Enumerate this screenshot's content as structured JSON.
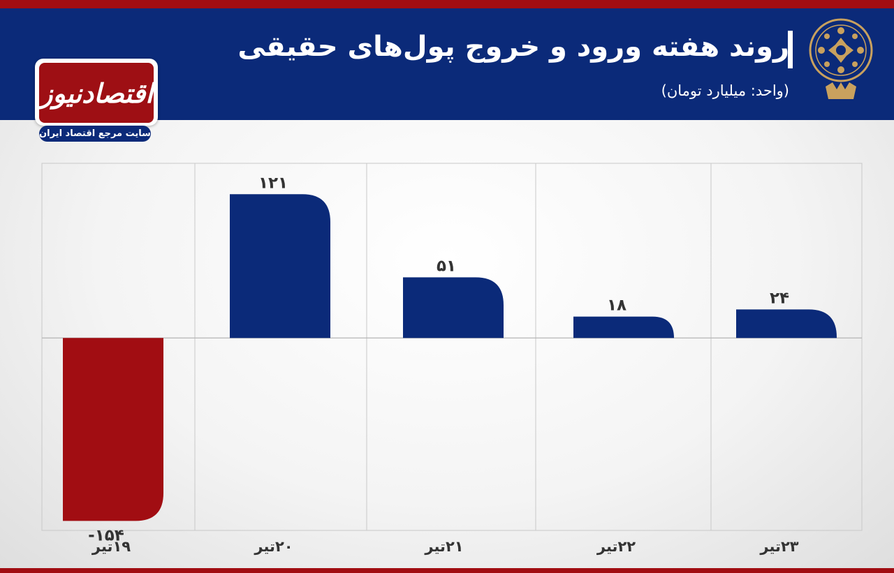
{
  "header": {
    "title": "روند هفته ورود و خروج پول‌های حقیقی",
    "unit": "(واحد:  میلیارد تومان)"
  },
  "logo": {
    "name": "اقتصادنیوز",
    "tagline": "سایت مرجع اقتصاد ایران"
  },
  "chart_data": {
    "type": "bar",
    "title": "روند هفته ورود و خروج پول‌های حقیقی",
    "subtitle": "(واحد:  میلیارد تومان)",
    "categories": [
      "۱۹تیر",
      "۲۰تیر",
      "۲۱تیر",
      "۲۲تیر",
      "۲۳تیر"
    ],
    "values": [
      -154,
      121,
      51,
      18,
      24
    ],
    "value_labels": [
      "-۱۵۴",
      "۱۲۱",
      "۵۱",
      "۱۸",
      "۲۴"
    ],
    "ylim": [
      -162,
      147
    ],
    "grid": true,
    "colors": {
      "positive": "#0b2a79",
      "negative": "#a10d12",
      "grid": "#c8c8c8",
      "header": "#0b2a79",
      "accent": "#a10d12"
    }
  }
}
